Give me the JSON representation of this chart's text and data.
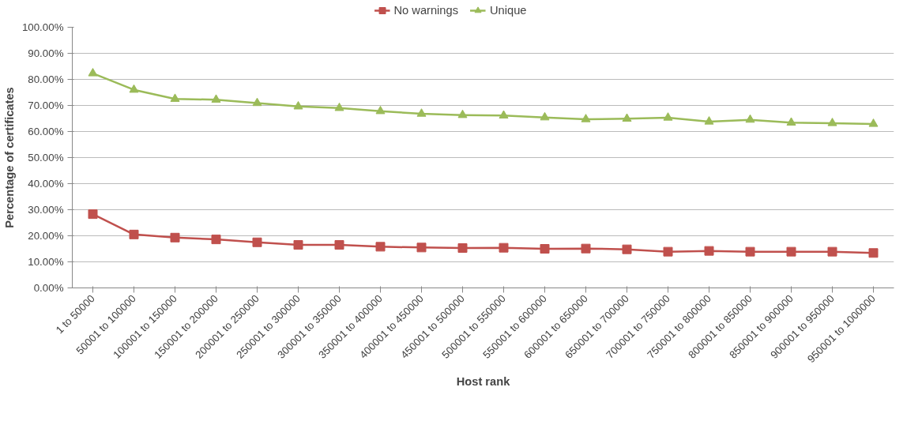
{
  "chart_data": {
    "type": "line",
    "xlabel": "Host rank",
    "ylabel": "Percentage of certificates",
    "categories": [
      "1 to 50000",
      "50001 to 100000",
      "100001 to 150000",
      "150001 to 200000",
      "200001 to 250000",
      "250001 to 300000",
      "300001 to 350000",
      "350001 to 400000",
      "400001 to 450000",
      "450001 to 500000",
      "500001 to 550000",
      "550001 to 600000",
      "600001 to 650000",
      "650001 to 700000",
      "700001 to 750000",
      "750001 to 800000",
      "800001 to 850000",
      "850001 to 900000",
      "900001 to 950000",
      "950001 to 1000000"
    ],
    "series": [
      {
        "name": "No warnings",
        "color": "#c0504d",
        "marker": "square",
        "values": [
          28.3,
          20.5,
          19.3,
          18.6,
          17.5,
          16.5,
          16.5,
          15.8,
          15.5,
          15.3,
          15.4,
          15.0,
          15.1,
          14.8,
          13.9,
          14.2,
          13.9,
          13.9,
          13.9,
          13.4
        ]
      },
      {
        "name": "Unique",
        "color": "#9bbb59",
        "marker": "triangle",
        "values": [
          82.3,
          76.0,
          72.5,
          72.2,
          70.9,
          69.6,
          69.0,
          67.8,
          66.8,
          66.3,
          66.1,
          65.4,
          64.7,
          64.9,
          65.3,
          63.8,
          64.5,
          63.4,
          63.2,
          62.9
        ]
      }
    ],
    "ylim": [
      0,
      100
    ],
    "yticks": [
      {
        "value": 0,
        "label": "0.00%"
      },
      {
        "value": 10,
        "label": "10.00%"
      },
      {
        "value": 20,
        "label": "20.00%"
      },
      {
        "value": 30,
        "label": "30.00%"
      },
      {
        "value": 40,
        "label": "40.00%"
      },
      {
        "value": 50,
        "label": "50.00%"
      },
      {
        "value": 60,
        "label": "60.00%"
      },
      {
        "value": 70,
        "label": "70.00%"
      },
      {
        "value": 80,
        "label": "80.00%"
      },
      {
        "value": 90,
        "label": "90.00%"
      },
      {
        "value": 100,
        "label": "100.00%"
      }
    ],
    "grid": "y",
    "legend": "top",
    "line_style": "solid"
  }
}
